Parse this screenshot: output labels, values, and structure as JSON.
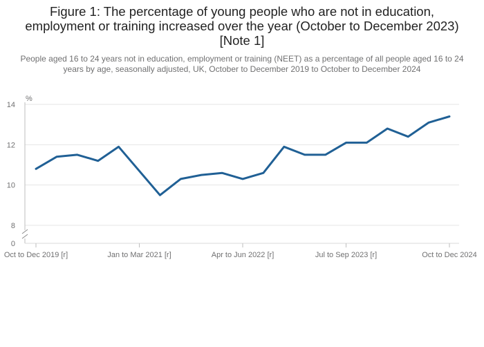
{
  "chart_data": {
    "type": "line",
    "title": "Figure 1: The percentage of young people who are not in education, employment or training increased over the year (October to December 2023) [Note 1]",
    "subtitle": "People aged 16 to 24 years not in education, employment or training (NEET) as a percentage of all people aged 16 to 24 years by age, seasonally adjusted, UK, October to December 2019 to October to December 2024",
    "ylabel": "%",
    "y_ticks": [
      "0",
      "8",
      "10",
      "12",
      "14"
    ],
    "ylim": [
      8,
      14
    ],
    "y_axis_break": true,
    "x_tick_labels": [
      "Oct to Dec 2019 [r]",
      "Jan to Mar 2021 [r]",
      "Apr to Jun 2022 [r]",
      "Jul to Sep 2023 [r]",
      "Oct to Dec 2024"
    ],
    "x_tick_indices": [
      0,
      5,
      10,
      15,
      20
    ],
    "grid": true,
    "series": [
      {
        "color": "#206095",
        "values": [
          10.8,
          11.4,
          11.5,
          11.2,
          11.9,
          10.7,
          9.5,
          10.3,
          10.5,
          10.6,
          10.3,
          10.6,
          11.9,
          11.5,
          11.5,
          12.1,
          12.1,
          12.8,
          12.4,
          13.1,
          13.4
        ]
      }
    ]
  }
}
